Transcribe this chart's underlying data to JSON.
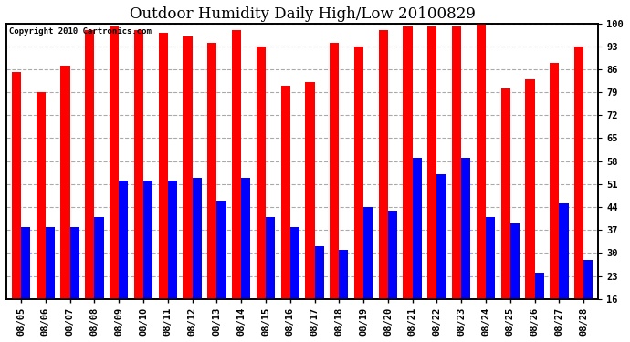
{
  "title": "Outdoor Humidity Daily High/Low 20100829",
  "copyright": "Copyright 2010 Cartronics.com",
  "dates": [
    "08/05",
    "08/06",
    "08/07",
    "08/08",
    "08/09",
    "08/10",
    "08/11",
    "08/12",
    "08/13",
    "08/14",
    "08/15",
    "08/16",
    "08/17",
    "08/18",
    "08/19",
    "08/20",
    "08/21",
    "08/22",
    "08/23",
    "08/24",
    "08/25",
    "08/26",
    "08/27",
    "08/28"
  ],
  "highs": [
    85,
    79,
    87,
    98,
    99,
    98,
    97,
    96,
    94,
    98,
    93,
    81,
    82,
    94,
    93,
    98,
    99,
    99,
    99,
    100,
    80,
    83,
    88,
    93
  ],
  "lows": [
    38,
    38,
    38,
    41,
    52,
    52,
    52,
    53,
    46,
    53,
    41,
    38,
    32,
    31,
    44,
    43,
    59,
    54,
    59,
    41,
    39,
    24,
    45,
    28
  ],
  "high_color": "#ff0000",
  "low_color": "#0000ff",
  "bg_color": "#ffffff",
  "plot_bg_color": "#ffffff",
  "grid_color": "#aaaaaa",
  "yticks": [
    16,
    23,
    30,
    37,
    44,
    51,
    58,
    65,
    72,
    79,
    86,
    93,
    100
  ],
  "ymin": 16,
  "ymax": 100,
  "bar_width": 0.38,
  "title_fontsize": 12,
  "tick_fontsize": 7.5,
  "copyright_fontsize": 6.5
}
